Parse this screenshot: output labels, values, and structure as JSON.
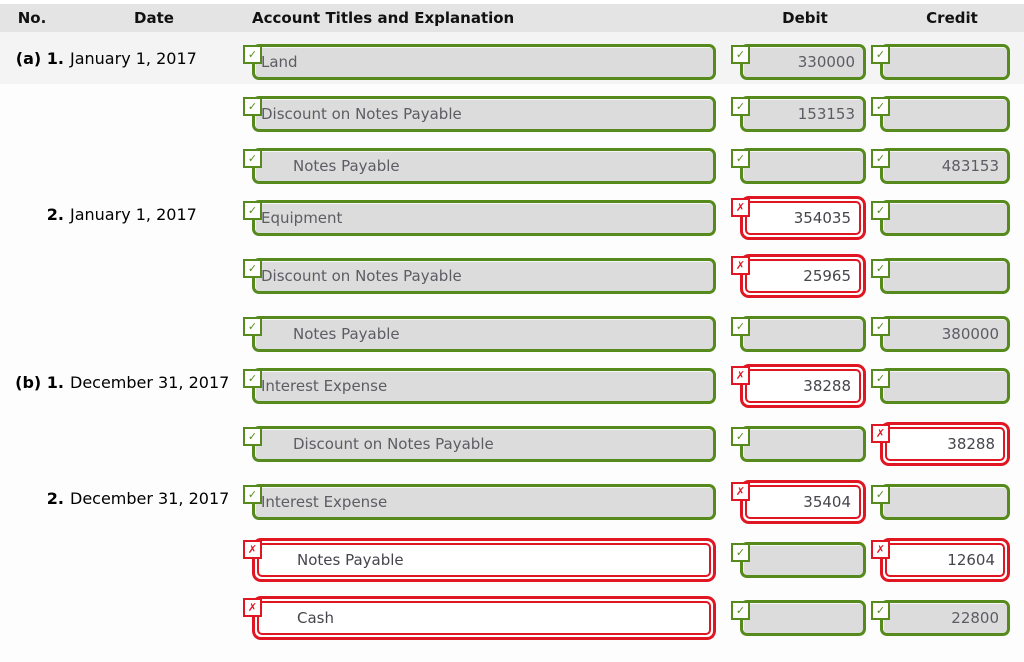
{
  "header": {
    "no": "No.",
    "date": "Date",
    "account": "Account Titles and Explanation",
    "debit": "Debit",
    "credit": "Credit"
  },
  "colors": {
    "green": "#578a1d",
    "red": "#e01622",
    "header_bg": "#e4e4e4",
    "field_fill": "#dcdcdc"
  },
  "icons": {
    "check": "✓",
    "x": "✗"
  },
  "rows": [
    {
      "no": "(a) 1.",
      "date": "January 1, 2017",
      "account": "Land",
      "indent": false,
      "account_status": "correct",
      "debit": "330000",
      "debit_status": "correct",
      "credit": "",
      "credit_status": "correct"
    },
    {
      "no": "",
      "date": "",
      "account": "Discount on Notes Payable",
      "indent": false,
      "account_status": "correct",
      "debit": "153153",
      "debit_status": "correct",
      "credit": "",
      "credit_status": "correct"
    },
    {
      "no": "",
      "date": "",
      "account": "Notes Payable",
      "indent": true,
      "account_status": "correct",
      "debit": "",
      "debit_status": "correct",
      "credit": "483153",
      "credit_status": "correct"
    },
    {
      "no": "2.",
      "date": "January 1, 2017",
      "account": "Equipment",
      "indent": false,
      "account_status": "correct",
      "debit": "354035",
      "debit_status": "incorrect",
      "credit": "",
      "credit_status": "correct"
    },
    {
      "no": "",
      "date": "",
      "account": "Discount on Notes Payable",
      "indent": false,
      "account_status": "correct",
      "debit": "25965",
      "debit_status": "incorrect",
      "credit": "",
      "credit_status": "correct"
    },
    {
      "no": "",
      "date": "",
      "account": "Notes Payable",
      "indent": true,
      "account_status": "correct",
      "debit": "",
      "debit_status": "correct",
      "credit": "380000",
      "credit_status": "correct"
    },
    {
      "no": "(b) 1.",
      "date": "December 31, 2017",
      "account": "Interest Expense",
      "indent": false,
      "account_status": "correct",
      "debit": "38288",
      "debit_status": "incorrect",
      "credit": "",
      "credit_status": "correct"
    },
    {
      "no": "",
      "date": "",
      "account": "Discount on Notes Payable",
      "indent": true,
      "account_status": "correct",
      "debit": "",
      "debit_status": "correct",
      "credit": "38288",
      "credit_status": "incorrect"
    },
    {
      "no": "2.",
      "date": "December 31, 2017",
      "account": "Interest Expense",
      "indent": false,
      "account_status": "correct",
      "debit": "35404",
      "debit_status": "incorrect",
      "credit": "",
      "credit_status": "correct"
    },
    {
      "no": "",
      "date": "",
      "account": "Notes Payable",
      "indent": true,
      "account_status": "incorrect",
      "debit": "",
      "debit_status": "correct",
      "credit": "12604",
      "credit_status": "incorrect"
    },
    {
      "no": "",
      "date": "",
      "account": "Cash",
      "indent": true,
      "account_status": "incorrect",
      "debit": "",
      "debit_status": "correct",
      "credit": "22800",
      "credit_status": "correct"
    }
  ]
}
